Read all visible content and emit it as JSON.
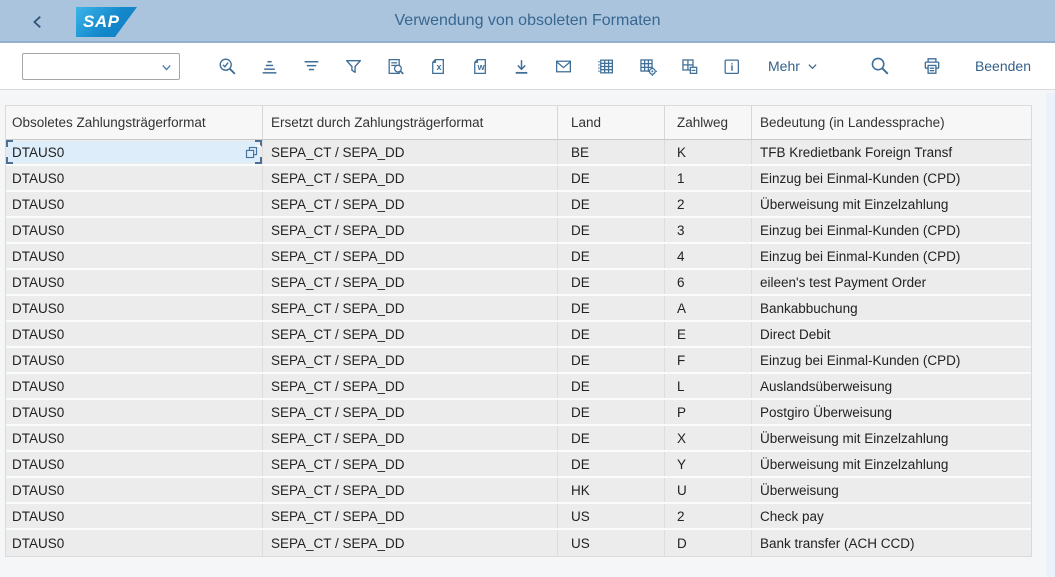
{
  "topbar": {
    "title": "Verwendung von obsoleten Formaten",
    "logo_text": "SAP"
  },
  "toolbar": {
    "combobox_value": "",
    "icons": [
      "find-icon",
      "sort-ascending-icon",
      "sort-descending-icon",
      "filter-icon",
      "print-preview-icon",
      "export-excel-icon",
      "export-word-icon",
      "download-icon",
      "email-icon",
      "spreadsheet-icon",
      "layout-settings-icon",
      "save-layout-icon",
      "info-icon"
    ],
    "mehr_label": "Mehr",
    "beenden_label": "Beenden"
  },
  "table": {
    "columns": [
      "Obsoletes Zahlungsträgerformat",
      "Ersetzt durch Zahlungsträgerformat",
      "Land",
      "Zahlweg",
      "Bedeutung (in Landessprache)"
    ],
    "rows": [
      [
        "DTAUS0",
        "SEPA_CT / SEPA_DD",
        "BE",
        "K",
        "TFB Kredietbank Foreign Transf"
      ],
      [
        "DTAUS0",
        "SEPA_CT / SEPA_DD",
        "DE",
        "1",
        "Einzug bei Einmal-Kunden (CPD)"
      ],
      [
        "DTAUS0",
        "SEPA_CT / SEPA_DD",
        "DE",
        "2",
        "Überweisung mit Einzelzahlung"
      ],
      [
        "DTAUS0",
        "SEPA_CT / SEPA_DD",
        "DE",
        "3",
        "Einzug bei Einmal-Kunden (CPD)"
      ],
      [
        "DTAUS0",
        "SEPA_CT / SEPA_DD",
        "DE",
        "4",
        "Einzug bei Einmal-Kunden (CPD)"
      ],
      [
        "DTAUS0",
        "SEPA_CT / SEPA_DD",
        "DE",
        "6",
        "eileen's test Payment Order"
      ],
      [
        "DTAUS0",
        "SEPA_CT / SEPA_DD",
        "DE",
        "A",
        "Bankabbuchung"
      ],
      [
        "DTAUS0",
        "SEPA_CT / SEPA_DD",
        "DE",
        "E",
        "Direct Debit"
      ],
      [
        "DTAUS0",
        "SEPA_CT / SEPA_DD",
        "DE",
        "F",
        "Einzug bei Einmal-Kunden (CPD)"
      ],
      [
        "DTAUS0",
        "SEPA_CT / SEPA_DD",
        "DE",
        "L",
        "Auslandsüberweisung"
      ],
      [
        "DTAUS0",
        "SEPA_CT / SEPA_DD",
        "DE",
        "P",
        "Postgiro Überweisung"
      ],
      [
        "DTAUS0",
        "SEPA_CT / SEPA_DD",
        "DE",
        "X",
        "Überweisung mit Einzelzahlung"
      ],
      [
        "DTAUS0",
        "SEPA_CT / SEPA_DD",
        "DE",
        "Y",
        "Überweisung mit Einzelzahlung"
      ],
      [
        "DTAUS0",
        "SEPA_CT / SEPA_DD",
        "HK",
        "U",
        "Überweisung"
      ],
      [
        "DTAUS0",
        "SEPA_CT / SEPA_DD",
        "US",
        "2",
        "Check pay"
      ],
      [
        "DTAUS0",
        "SEPA_CT / SEPA_DD",
        "US",
        "D",
        "Bank transfer (ACH CCD)"
      ]
    ],
    "selected_cell": {
      "row": 0,
      "col": 0
    }
  },
  "colors": {
    "topbar_bg": "#abc4de",
    "title_text": "#38678f",
    "icon_blue": "#3f6e96",
    "row_bg": "#ececec",
    "selected_cell_bg": "#ddeefa",
    "sap_logo_blue": "#1488cb"
  }
}
